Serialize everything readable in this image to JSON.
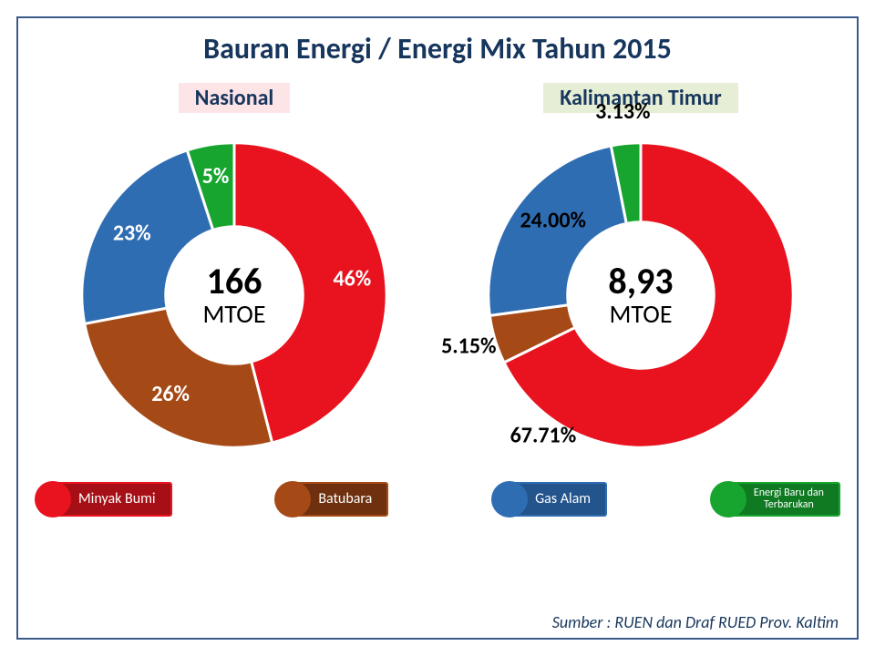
{
  "title": "Bauran Energi / Energi Mix  Tahun 2015",
  "background_color": "#ffffff",
  "border_color": "#3a5a8a",
  "title_color": "#17365d",
  "charts": [
    {
      "key": "nasional",
      "heading": "Nasional",
      "heading_bg": "#fde4e6",
      "center_value": "166",
      "center_unit": "MTOE",
      "type": "donut",
      "inner_radius_pct": 45,
      "start_angle_deg": 0,
      "segments": [
        {
          "name": "Minyak Bumi",
          "value": 46,
          "label": "46%",
          "color": "#e8131f",
          "label_color": "#ffffff",
          "label_r": 0.78,
          "label_t": 0.5
        },
        {
          "name": "Batubara",
          "value": 26,
          "label": "26%",
          "color": "#a54a17",
          "label_color": "#ffffff",
          "label_r": 0.78,
          "label_t": 0.5
        },
        {
          "name": "Gas Alam",
          "value": 23,
          "label": "23%",
          "color": "#2f6db3",
          "label_color": "#ffffff",
          "label_r": 0.78,
          "label_t": 0.5
        },
        {
          "name": "Energi Baru dan Terbarukan",
          "value": 5,
          "label": "5%",
          "color": "#17a52f",
          "label_color": "#ffffff",
          "label_r": 0.78,
          "label_t": 0.5
        }
      ]
    },
    {
      "key": "kaltim",
      "heading": "Kalimantan Timur",
      "heading_bg": "#e6efd5",
      "center_value": "8,93",
      "center_unit": "MTOE",
      "type": "donut",
      "inner_radius_pct": 48,
      "start_angle_deg": 0,
      "segments": [
        {
          "name": "Minyak Bumi",
          "value": 67.71,
          "label": "67.71%",
          "color": "#e8131f",
          "label_color": "#000000",
          "label_r": 1.13,
          "label_t": 0.88
        },
        {
          "name": "Batubara",
          "value": 5.15,
          "label": "5.15%",
          "color": "#a54a17",
          "label_color": "#000000",
          "label_r": 1.18,
          "label_t": 0.5
        },
        {
          "name": "Gas Alam",
          "value": 24.0,
          "label": "24.00%",
          "color": "#2f6db3",
          "label_color": "#000000",
          "label_r": 0.75,
          "label_t": 0.55
        },
        {
          "name": "Energi Baru dan Terbarukan",
          "value": 3.13,
          "label": "3.13%",
          "color": "#17a52f",
          "label_color": "#000000",
          "label_r": 1.2,
          "label_t": 0.5
        }
      ]
    }
  ],
  "legend": [
    {
      "label": "Minyak Bumi",
      "dot": "#e8131f",
      "tag_bg": "#a60f16",
      "tag_border": "#e8131f",
      "font_size": 16
    },
    {
      "label": "Batubara",
      "dot": "#a54a17",
      "tag_bg": "#6e300e",
      "tag_border": "#a54a17",
      "font_size": 16
    },
    {
      "label": "Gas Alam",
      "dot": "#2f6db3",
      "tag_bg": "#23548c",
      "tag_border": "#2f6db3",
      "font_size": 16
    },
    {
      "label": "Energi Baru dan\nTerbarukan",
      "dot": "#17a52f",
      "tag_bg": "#0f7a22",
      "tag_border": "#17a52f",
      "font_size": 12
    }
  ],
  "source": "Sumber : RUEN dan Draf RUED Prov. Kaltim"
}
